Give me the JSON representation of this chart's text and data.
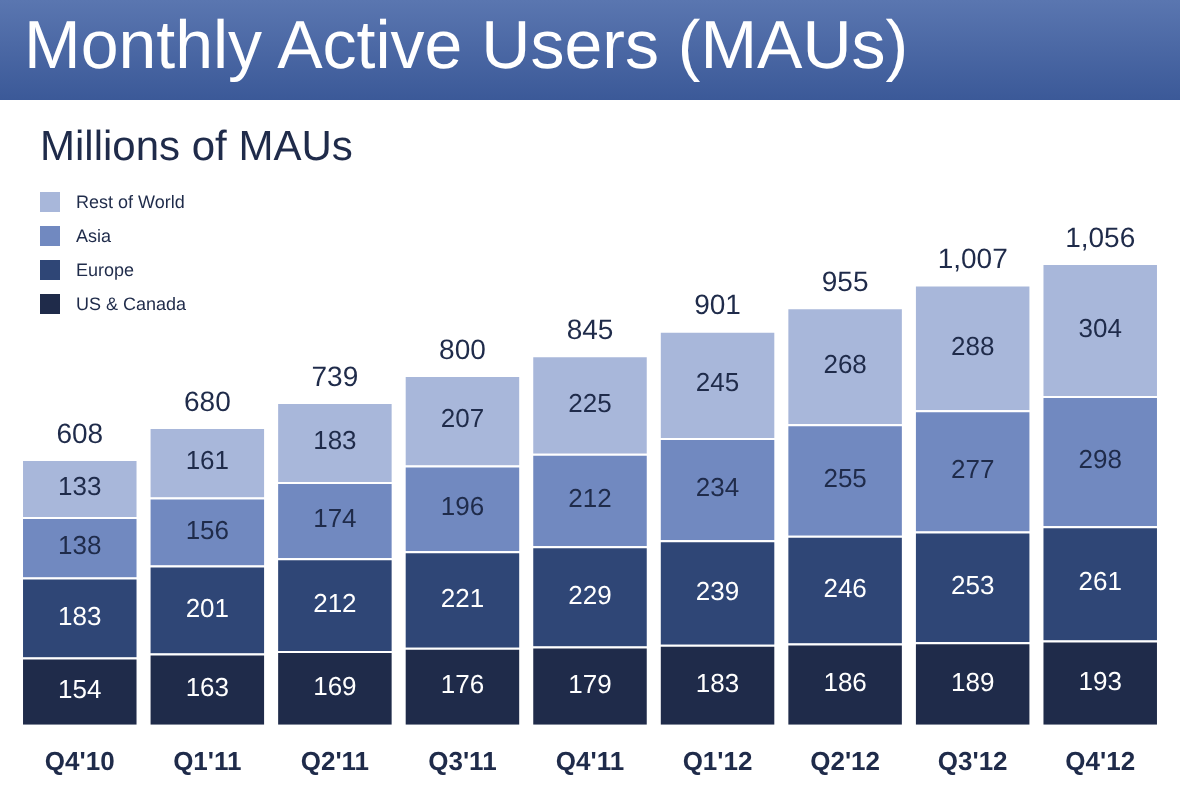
{
  "chart_data": {
    "type": "bar",
    "title": "Monthly Active Users (MAUs)",
    "subtitle": "Millions of MAUs",
    "categories": [
      "Q4'10",
      "Q1'11",
      "Q2'11",
      "Q3'11",
      "Q4'11",
      "Q1'12",
      "Q2'12",
      "Q3'12",
      "Q4'12"
    ],
    "series": [
      {
        "name": "US & Canada",
        "color": "#1f2b4a",
        "values": [
          154,
          163,
          169,
          176,
          179,
          183,
          186,
          189,
          193
        ]
      },
      {
        "name": "Europe",
        "color": "#2f4676",
        "values": [
          183,
          201,
          212,
          221,
          229,
          239,
          246,
          253,
          261
        ]
      },
      {
        "name": "Asia",
        "color": "#7189c0",
        "values": [
          138,
          156,
          174,
          196,
          212,
          234,
          255,
          277,
          298
        ]
      },
      {
        "name": "Rest of World",
        "color": "#a8b7da",
        "values": [
          133,
          161,
          183,
          207,
          225,
          245,
          268,
          288,
          304
        ]
      }
    ],
    "stacked": true,
    "data_labels": true,
    "totals": [
      "608",
      "680",
      "739",
      "800",
      "845",
      "901",
      "955",
      "1,007",
      "1,056"
    ],
    "legend": "top left"
  }
}
